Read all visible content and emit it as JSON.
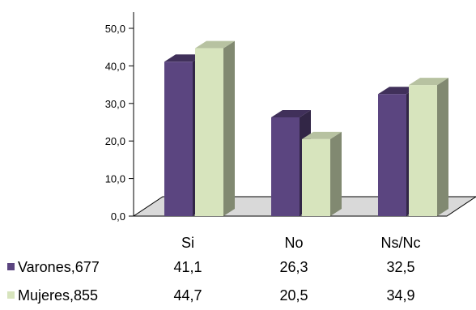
{
  "chart_data": {
    "type": "bar",
    "categories": [
      "Si",
      "No",
      "Ns/Nc"
    ],
    "series": [
      {
        "name": "Varones,677",
        "values": [
          41.1,
          26.3,
          32.5
        ],
        "color": "#5b4580"
      },
      {
        "name": "Mujeres,855",
        "values": [
          44.7,
          20.5,
          34.9
        ],
        "color": "#d7e4bd"
      }
    ],
    "ylim": [
      0,
      50
    ],
    "yticks": [
      "0,0",
      "10,0",
      "20,0",
      "30,0",
      "40,0",
      "50,0"
    ],
    "value_labels": [
      [
        "41,1",
        "26,3",
        "32,5"
      ],
      [
        "44,7",
        "20,5",
        "34,9"
      ]
    ],
    "legend": "data table below chart",
    "grid": false,
    "style": "3d-clustered-column"
  }
}
